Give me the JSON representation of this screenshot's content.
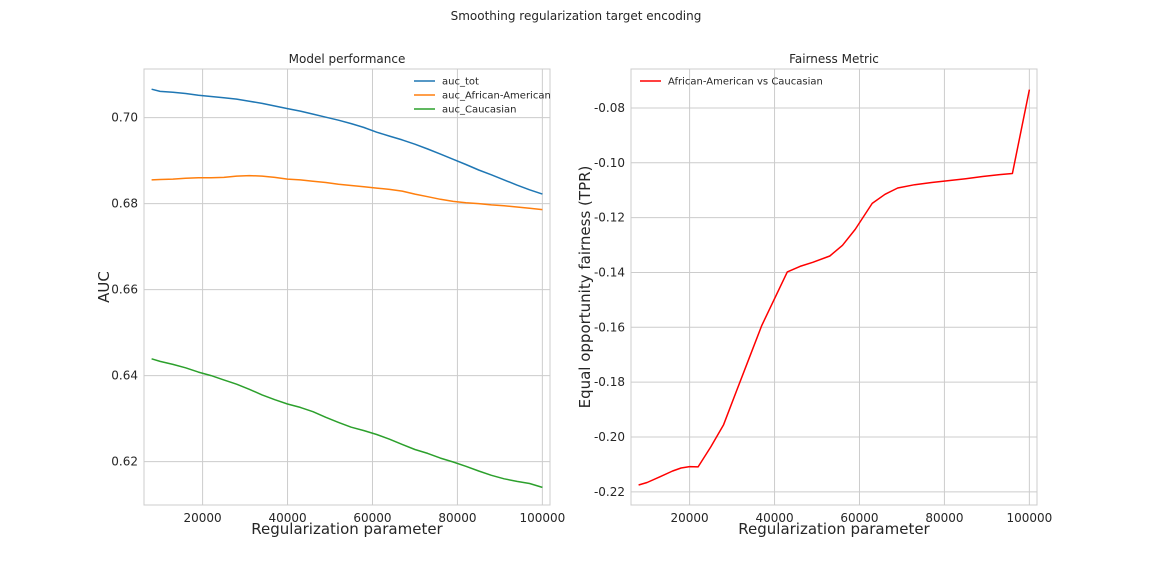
{
  "figure": {
    "suptitle": "Smoothing regularization target encoding"
  },
  "chart_data": [
    {
      "type": "line",
      "title": "Model performance",
      "xlabel": "Regularization parameter",
      "ylabel": "AUC",
      "xlim": [
        6200,
        101800
      ],
      "ylim": [
        0.6099,
        0.7113
      ],
      "xticks": [
        20000,
        40000,
        60000,
        80000,
        100000
      ],
      "xtick_labels": [
        "20000",
        "40000",
        "60000",
        "80000",
        "100000"
      ],
      "yticks": [
        0.62,
        0.64,
        0.66,
        0.68,
        0.7
      ],
      "ytick_labels": [
        "0.62",
        "0.64",
        "0.66",
        "0.68",
        "0.70"
      ],
      "grid": true,
      "legend_position": "top-right",
      "x": [
        8000,
        10000,
        13000,
        16000,
        19000,
        22000,
        25000,
        28000,
        31000,
        34000,
        37000,
        40000,
        43000,
        46000,
        49000,
        52000,
        55000,
        58000,
        61000,
        64000,
        67000,
        70000,
        73000,
        76000,
        79000,
        82000,
        85000,
        88000,
        91000,
        94000,
        97000,
        100000
      ],
      "series": [
        {
          "name": "auc_tot",
          "color": "#1f77b4",
          "values": [
            0.7066,
            0.7061,
            0.7059,
            0.7056,
            0.7052,
            0.7049,
            0.7046,
            0.7043,
            0.7038,
            0.7033,
            0.7027,
            0.7021,
            0.7015,
            0.7008,
            0.7001,
            0.6994,
            0.6986,
            0.6977,
            0.6966,
            0.6957,
            0.6948,
            0.6938,
            0.6927,
            0.6915,
            0.6903,
            0.6891,
            0.6878,
            0.6867,
            0.6855,
            0.6843,
            0.6832,
            0.6822
          ]
        },
        {
          "name": "auc_African-American",
          "color": "#ff7f0e",
          "values": [
            0.6855,
            0.6856,
            0.6857,
            0.6859,
            0.686,
            0.686,
            0.6861,
            0.6864,
            0.6865,
            0.6864,
            0.6861,
            0.6857,
            0.6855,
            0.6852,
            0.6849,
            0.6845,
            0.6842,
            0.6839,
            0.6836,
            0.6833,
            0.6829,
            0.6822,
            0.6816,
            0.681,
            0.6805,
            0.6802,
            0.68,
            0.6797,
            0.6795,
            0.6792,
            0.6789,
            0.6786
          ]
        },
        {
          "name": "auc_Caucasian",
          "color": "#2ca02c",
          "values": [
            0.6439,
            0.6433,
            0.6426,
            0.6418,
            0.6408,
            0.64,
            0.639,
            0.638,
            0.6368,
            0.6355,
            0.6344,
            0.6334,
            0.6326,
            0.6316,
            0.6303,
            0.6291,
            0.628,
            0.6272,
            0.6263,
            0.6252,
            0.624,
            0.6228,
            0.6219,
            0.6208,
            0.6199,
            0.6189,
            0.6178,
            0.6168,
            0.616,
            0.6154,
            0.6149,
            0.614
          ]
        }
      ]
    },
    {
      "type": "line",
      "title": "Fairness Metric",
      "xlabel": "Regularization parameter",
      "ylabel": "Equal opportunity fairness (TPR)",
      "xlim": [
        6200,
        101800
      ],
      "ylim": [
        -0.2248,
        -0.0658
      ],
      "xticks": [
        20000,
        40000,
        60000,
        80000,
        100000
      ],
      "xtick_labels": [
        "20000",
        "40000",
        "60000",
        "80000",
        "100000"
      ],
      "yticks": [
        -0.22,
        -0.2,
        -0.18,
        -0.16,
        -0.14,
        -0.12,
        -0.1,
        -0.08
      ],
      "ytick_labels": [
        "-0.22",
        "-0.20",
        "-0.18",
        "-0.16",
        "-0.14",
        "-0.12",
        "-0.10",
        "-0.08"
      ],
      "grid": true,
      "legend_position": "top-left",
      "series": [
        {
          "name": "African-American vs Caucasian",
          "color": "#ff0000",
          "x": [
            8000,
            10000,
            13000,
            16000,
            18000,
            20000,
            22000,
            25000,
            28000,
            31000,
            34000,
            37000,
            39000,
            43000,
            46000,
            49000,
            53000,
            56000,
            59000,
            63000,
            66000,
            69000,
            73000,
            77000,
            81000,
            85000,
            89000,
            93000,
            96000,
            100000
          ],
          "values": [
            -0.2175,
            -0.2166,
            -0.2145,
            -0.2124,
            -0.2113,
            -0.2108,
            -0.2109,
            -0.2036,
            -0.1955,
            -0.1834,
            -0.1713,
            -0.1593,
            -0.1528,
            -0.1398,
            -0.1378,
            -0.1363,
            -0.134,
            -0.1301,
            -0.1243,
            -0.1148,
            -0.1115,
            -0.1092,
            -0.108,
            -0.1072,
            -0.1065,
            -0.1058,
            -0.105,
            -0.1043,
            -0.1039,
            -0.0733
          ]
        }
      ]
    }
  ]
}
